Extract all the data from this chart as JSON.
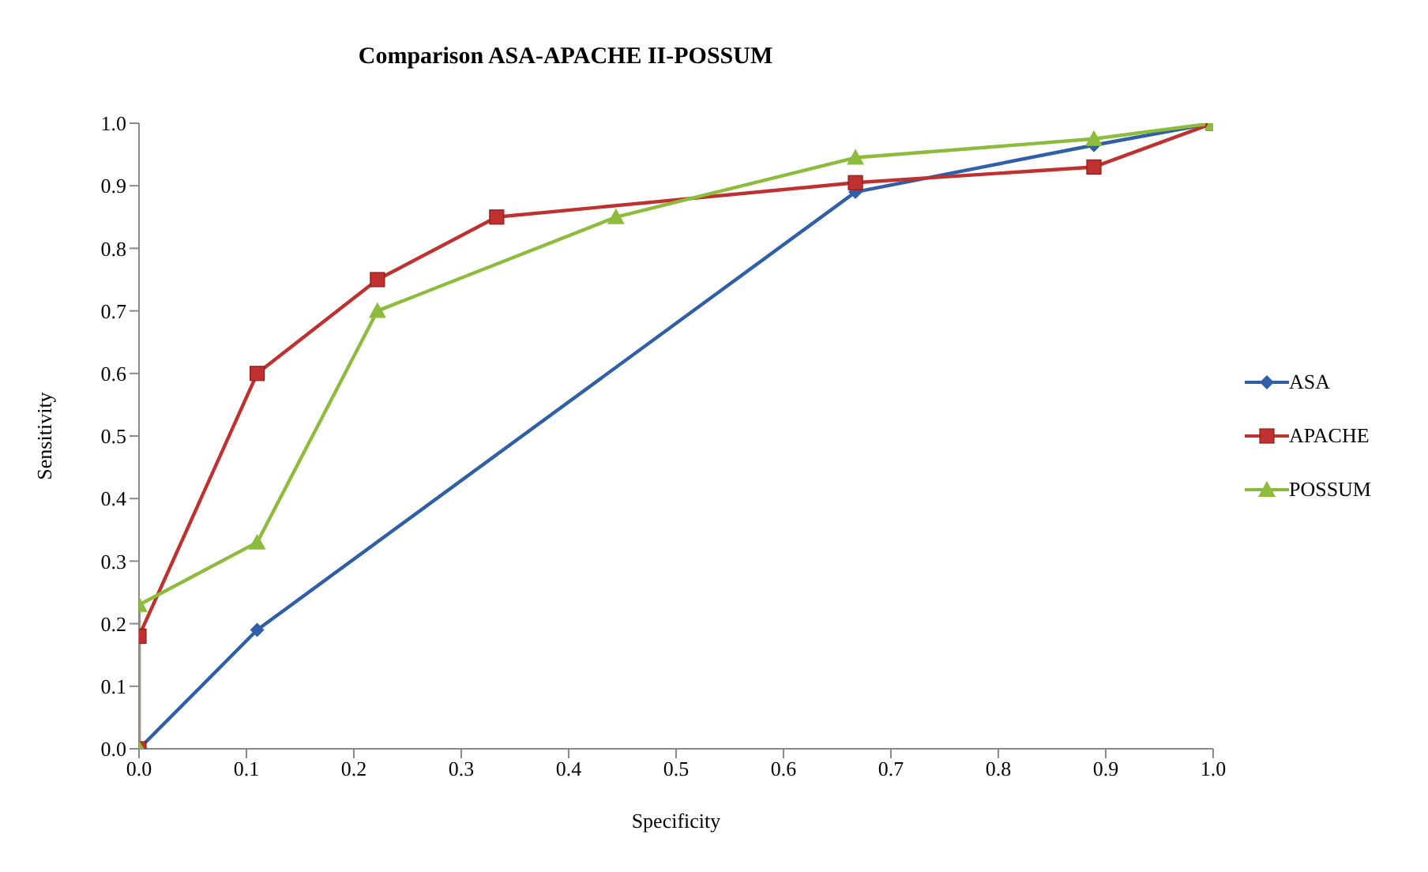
{
  "chart_data": {
    "type": "line",
    "title": "Comparison ASA-APACHE II-POSSUM",
    "xlabel": "Specificity",
    "ylabel": "Sensitivity",
    "xlim": [
      0,
      1
    ],
    "xticks": [
      {
        "value": 0,
        "label": "0.0"
      },
      0.1,
      0.2,
      0.3,
      0.4,
      0.5,
      0.6,
      0.7,
      0.8,
      0.9,
      {
        "value": 1,
        "label": "1.0"
      }
    ],
    "ylim": [
      0,
      1
    ],
    "yticks": [
      {
        "value": 0,
        "label": "0.0"
      },
      0.1,
      0.2,
      0.3,
      0.4,
      0.5,
      0.6,
      0.7,
      0.8,
      0.9,
      {
        "value": 1,
        "label": "1.0"
      }
    ],
    "grid": false,
    "legend": "right",
    "series": [
      {
        "name": "ASA",
        "color": "#2e5fa8",
        "marker": "diamond",
        "x": [
          0,
          0.11,
          0.667,
          0.889,
          1
        ],
        "values": [
          0,
          0.19,
          0.89,
          0.965,
          1
        ]
      },
      {
        "name": "APACHE",
        "color": "#c0302e",
        "marker": "square",
        "x": [
          0,
          0,
          0.11,
          0.222,
          0.333,
          0.667,
          0.889,
          1
        ],
        "values": [
          0,
          0.18,
          0.6,
          0.75,
          0.85,
          0.905,
          0.93,
          1
        ]
      },
      {
        "name": "POSSUM",
        "color": "#8dbb3c",
        "marker": "triangle",
        "x": [
          0,
          0,
          0.11,
          0.222,
          0.444,
          0.667,
          0.889,
          1
        ],
        "values": [
          0,
          0.23,
          0.33,
          0.7,
          0.85,
          0.945,
          0.975,
          1
        ]
      }
    ]
  }
}
